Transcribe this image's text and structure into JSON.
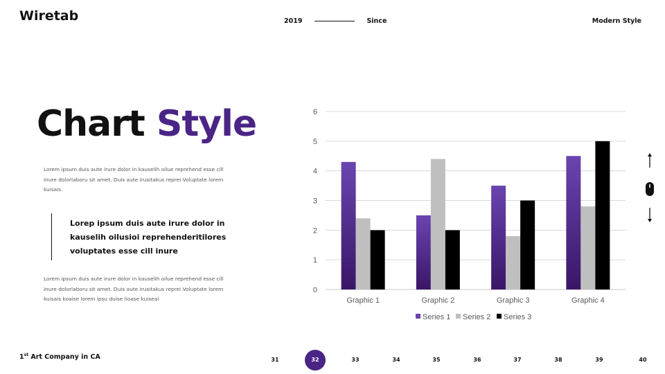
{
  "header": {
    "brand": "Wiretab",
    "year": "2019",
    "since": "Since",
    "style_label": "Modern Style"
  },
  "slide": {
    "title_part1": "Chart",
    "title_part2": "Style",
    "para1": "Lorem  ipsum duis aute irure dolor in kauselih oilue reprehend esse cill inure dolorlaboru sit amet. Duis aute irusitakus reprei Voluptate lorem kuisais.",
    "quote": "Lorep  ipsum duis aute irure dolor in kauselih oilusioi reprehenderitilores voluptates esse cill inure",
    "para2": "Lorem  ipsum duis aute irure dolor in kauselih oilue reprehend esse cill inure dolorlaboru sit amet. Duis aute irusitakus reprei Voluptate lorem kuisais koaise lorem ipsu duise lioase kuiseai"
  },
  "footer": {
    "company_sup": "st",
    "company_num": "1",
    "company_text": " Art Company in CA",
    "pages": [
      "31",
      "32",
      "33",
      "34",
      "35",
      "36",
      "37",
      "38",
      "39",
      "40"
    ],
    "active_page": "32"
  },
  "colors": {
    "accent": "#4a2585",
    "series1_top": "#6a45b0",
    "series1_bottom": "#3a1566",
    "series2": "#bfbfbf",
    "series3": "#000000"
  },
  "chart_data": {
    "type": "bar",
    "categories": [
      "Graphic 1",
      "Graphic 2",
      "Graphic 3",
      "Graphic 4"
    ],
    "series": [
      {
        "name": "Series 1",
        "values": [
          4.3,
          2.5,
          3.5,
          4.5
        ]
      },
      {
        "name": "Series 2",
        "values": [
          2.4,
          4.4,
          1.8,
          2.8
        ]
      },
      {
        "name": "Series 3",
        "values": [
          2,
          2,
          3,
          5
        ]
      }
    ],
    "ylim": [
      0,
      6
    ],
    "yticks": [
      "0",
      "1",
      "2",
      "3",
      "4",
      "5",
      "6"
    ],
    "grid": true,
    "legend": "bottom"
  }
}
